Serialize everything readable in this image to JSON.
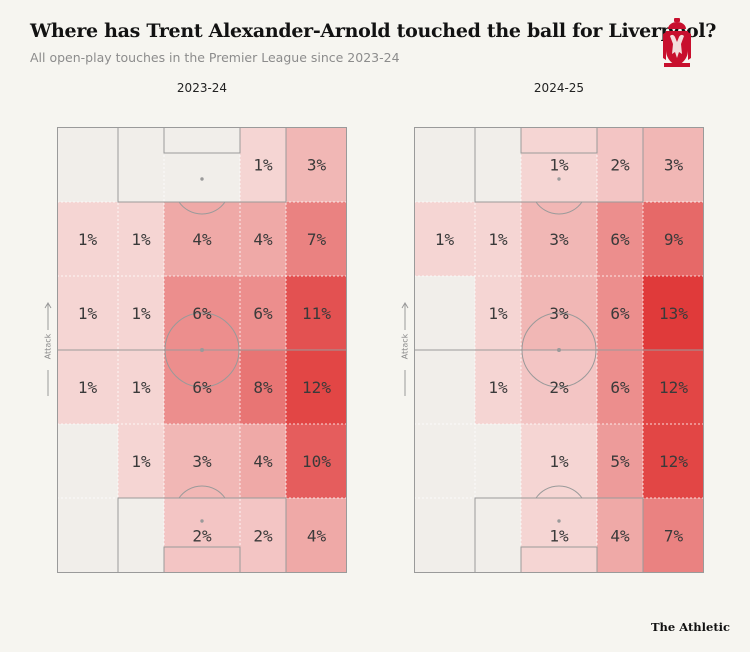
{
  "header": {
    "title": "Where has Trent Alexander-Arnold touched the ball for Liverpool?",
    "subtitle": "All open-play touches in the Premier League since 2023-24",
    "crest": {
      "icon": "liverpool-crest-icon",
      "color": "#c8102e"
    }
  },
  "attack_label": "Attack",
  "brand": "The Athletic",
  "colors": {
    "background": "#f6f5f0",
    "pitch_line": "#9a9a9a",
    "heat_low": "#f8e9e7",
    "heat_high": "#e03a3a",
    "label": "#3a3a3a"
  },
  "chart_data": [
    {
      "type": "heatmap",
      "title": "2023-24",
      "grid": {
        "rows": 6,
        "cols": 5,
        "row_order": "attacking end to own goal"
      },
      "values": [
        [
          null,
          null,
          null,
          1,
          3
        ],
        [
          1,
          1,
          4,
          4,
          7
        ],
        [
          1,
          1,
          6,
          6,
          11
        ],
        [
          1,
          1,
          6,
          8,
          12
        ],
        [
          null,
          1,
          3,
          4,
          10
        ],
        [
          null,
          null,
          2,
          2,
          4
        ]
      ],
      "unit": "%"
    },
    {
      "type": "heatmap",
      "title": "2024-25",
      "grid": {
        "rows": 6,
        "cols": 5,
        "row_order": "attacking end to own goal"
      },
      "values": [
        [
          null,
          null,
          1,
          2,
          3
        ],
        [
          1,
          1,
          3,
          6,
          9
        ],
        [
          null,
          1,
          3,
          6,
          13
        ],
        [
          null,
          1,
          2,
          6,
          12
        ],
        [
          null,
          null,
          1,
          5,
          12
        ],
        [
          null,
          null,
          1,
          4,
          7
        ]
      ],
      "unit": "%"
    }
  ]
}
